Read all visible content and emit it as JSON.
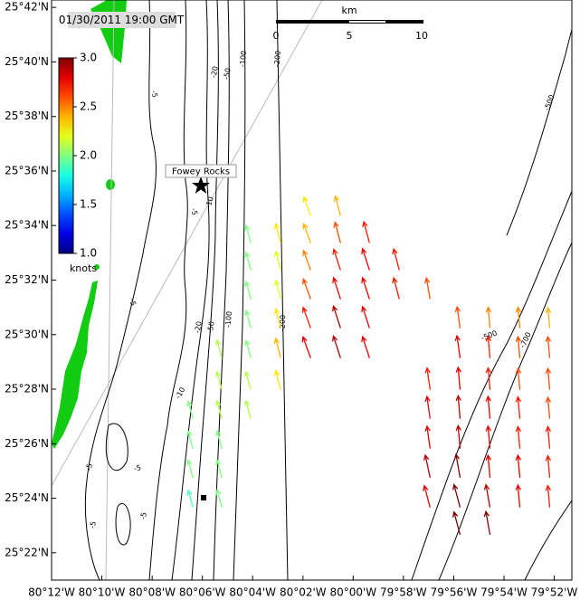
{
  "map": {
    "timestamp": "01/30/2011 19:00 GMT",
    "site": "Fowey Rocks",
    "scale": {
      "unit": "km",
      "labels": [
        "0",
        "5",
        "10"
      ]
    },
    "colorbar": {
      "unit": "knots",
      "clim": [
        1.0,
        3.0
      ],
      "ticks": [
        {
          "value": 1.0,
          "label": "1.0"
        },
        {
          "value": 1.5,
          "label": "1.5"
        },
        {
          "value": 2.0,
          "label": "2.0"
        },
        {
          "value": 2.5,
          "label": "2.5"
        },
        {
          "value": 3.0,
          "label": "3.0"
        }
      ]
    },
    "xlim": [
      -80.2,
      -79.855
    ],
    "ylim": [
      25.35,
      25.7045
    ],
    "xticks": [
      {
        "value": -80.2,
        "label": "80°12'W"
      },
      {
        "value": -80.1667,
        "label": "80°10'W"
      },
      {
        "value": -80.1333,
        "label": "80°08'W"
      },
      {
        "value": -80.1,
        "label": "80°06'W"
      },
      {
        "value": -80.0667,
        "label": "80°04'W"
      },
      {
        "value": -80.0333,
        "label": "80°02'W"
      },
      {
        "value": -80.0,
        "label": "80°00'W"
      },
      {
        "value": -79.9667,
        "label": "79°58'W"
      },
      {
        "value": -79.9333,
        "label": "79°56'W"
      },
      {
        "value": -79.9,
        "label": "79°54'W"
      },
      {
        "value": -79.8667,
        "label": "79°52'W"
      }
    ],
    "yticks": [
      {
        "value": 25.7,
        "label": "25°42'N"
      },
      {
        "value": 25.6667,
        "label": "25°40'N"
      },
      {
        "value": 25.6333,
        "label": "25°38'N"
      },
      {
        "value": 25.6,
        "label": "25°36'N"
      },
      {
        "value": 25.5667,
        "label": "25°34'N"
      },
      {
        "value": 25.5333,
        "label": "25°32'N"
      },
      {
        "value": 25.5,
        "label": "25°30'N"
      },
      {
        "value": 25.4667,
        "label": "25°28'N"
      },
      {
        "value": 25.4333,
        "label": "25°26'N"
      },
      {
        "value": 25.4,
        "label": "25°24'N"
      },
      {
        "value": 25.3667,
        "label": "25°22'N"
      }
    ],
    "contour_labels": [
      "-5",
      "-20",
      "-50",
      "-100",
      "-200",
      "-500",
      "-5",
      "-10",
      "-5",
      "-20",
      "-50",
      "-100",
      "-200",
      "-500",
      "-700",
      "-10",
      "-5",
      "-5",
      "-5",
      "-5"
    ],
    "vectors": [
      [
        -80.1063,
        25.4486,
        2.0,
        -15
      ],
      [
        -80.1063,
        25.4304,
        2.0,
        -15
      ],
      [
        -80.1063,
        25.4126,
        2.0,
        -15
      ],
      [
        -80.1063,
        25.3944,
        1.9,
        -15
      ],
      [
        -80.0871,
        25.4857,
        2.1,
        -15
      ],
      [
        -80.0871,
        25.4663,
        2.1,
        -15
      ],
      [
        -80.0871,
        25.4486,
        2.1,
        -15
      ],
      [
        -80.0871,
        25.4304,
        2.0,
        -15
      ],
      [
        -80.0871,
        25.4126,
        2.0,
        -15
      ],
      [
        -80.0871,
        25.3944,
        2.0,
        -15
      ],
      [
        -80.0679,
        25.556,
        2.0,
        -15
      ],
      [
        -80.0679,
        25.5394,
        2.0,
        -15
      ],
      [
        -80.0679,
        25.5217,
        2.0,
        -15
      ],
      [
        -80.0679,
        25.504,
        2.0,
        -15
      ],
      [
        -80.0679,
        25.4857,
        2.0,
        -15
      ],
      [
        -80.0679,
        25.4663,
        2.1,
        -15
      ],
      [
        -80.0679,
        25.4486,
        2.1,
        -15
      ],
      [
        -80.048,
        25.556,
        2.3,
        -15
      ],
      [
        -80.048,
        25.5394,
        2.2,
        -15
      ],
      [
        -80.048,
        25.5217,
        2.2,
        -15
      ],
      [
        -80.048,
        25.504,
        2.3,
        -15
      ],
      [
        -80.048,
        25.4857,
        2.4,
        -15
      ],
      [
        -80.048,
        25.4663,
        2.3,
        -15
      ],
      [
        -80.0282,
        25.5727,
        2.3,
        -20
      ],
      [
        -80.0282,
        25.556,
        2.4,
        -20
      ],
      [
        -80.0282,
        25.5394,
        2.5,
        -20
      ],
      [
        -80.0282,
        25.5217,
        2.6,
        -20
      ],
      [
        -80.0282,
        25.504,
        2.7,
        -20
      ],
      [
        -80.0282,
        25.4857,
        2.8,
        -20
      ],
      [
        -80.0084,
        25.5727,
        2.4,
        -15
      ],
      [
        -80.0084,
        25.556,
        2.6,
        -15
      ],
      [
        -80.0084,
        25.5394,
        2.7,
        -18
      ],
      [
        -80.0084,
        25.5217,
        2.8,
        -18
      ],
      [
        -80.0084,
        25.504,
        2.9,
        -18
      ],
      [
        -80.0084,
        25.4857,
        2.9,
        -18
      ],
      [
        -79.9892,
        25.556,
        2.7,
        -15
      ],
      [
        -79.9892,
        25.5394,
        2.8,
        -18
      ],
      [
        -79.9892,
        25.5217,
        2.8,
        -18
      ],
      [
        -79.9892,
        25.504,
        2.8,
        -18
      ],
      [
        -79.9892,
        25.4857,
        2.8,
        -18
      ],
      [
        -79.9694,
        25.5394,
        2.7,
        -15
      ],
      [
        -79.9694,
        25.5217,
        2.7,
        -15
      ],
      [
        -79.949,
        25.5217,
        2.6,
        -10
      ],
      [
        -79.949,
        25.4663,
        2.7,
        -8
      ],
      [
        -79.949,
        25.4486,
        2.8,
        -8
      ],
      [
        -79.949,
        25.4304,
        2.8,
        -8
      ],
      [
        -79.949,
        25.4126,
        2.9,
        -12
      ],
      [
        -79.949,
        25.3944,
        2.8,
        -15
      ],
      [
        -79.9291,
        25.504,
        2.6,
        -8
      ],
      [
        -79.9291,
        25.4857,
        2.8,
        -8
      ],
      [
        -79.9291,
        25.4663,
        2.8,
        -5
      ],
      [
        -79.9291,
        25.4486,
        2.9,
        -5
      ],
      [
        -79.9291,
        25.4304,
        2.9,
        -5
      ],
      [
        -79.9291,
        25.4126,
        3.0,
        -10
      ],
      [
        -79.9291,
        25.3944,
        3.0,
        -15
      ],
      [
        -79.9291,
        25.3777,
        3.0,
        -15
      ],
      [
        -79.9093,
        25.504,
        2.5,
        -5
      ],
      [
        -79.9093,
        25.4857,
        2.7,
        -5
      ],
      [
        -79.9093,
        25.4663,
        2.7,
        -5
      ],
      [
        -79.9093,
        25.4486,
        2.8,
        -5
      ],
      [
        -79.9093,
        25.4304,
        2.8,
        -5
      ],
      [
        -79.9093,
        25.4126,
        2.8,
        -5
      ],
      [
        -79.9093,
        25.3944,
        2.9,
        -10
      ],
      [
        -79.9093,
        25.3777,
        3.0,
        -10
      ],
      [
        -79.8895,
        25.504,
        2.5,
        -5
      ],
      [
        -79.8895,
        25.4857,
        2.6,
        -5
      ],
      [
        -79.8895,
        25.4663,
        2.6,
        -5
      ],
      [
        -79.8895,
        25.4486,
        2.7,
        -5
      ],
      [
        -79.8895,
        25.4304,
        2.7,
        -5
      ],
      [
        -79.8895,
        25.4126,
        2.8,
        -5
      ],
      [
        -79.8895,
        25.3944,
        2.8,
        -5
      ],
      [
        -79.8697,
        25.504,
        2.4,
        -5
      ],
      [
        -79.8697,
        25.4857,
        2.6,
        -5
      ],
      [
        -79.8697,
        25.4663,
        2.6,
        -5
      ],
      [
        -79.8697,
        25.4486,
        2.6,
        -5
      ],
      [
        -79.8697,
        25.4304,
        2.7,
        -5
      ],
      [
        -79.8697,
        25.4126,
        2.7,
        -5
      ],
      [
        -79.8697,
        25.3944,
        2.7,
        -5
      ]
    ]
  }
}
